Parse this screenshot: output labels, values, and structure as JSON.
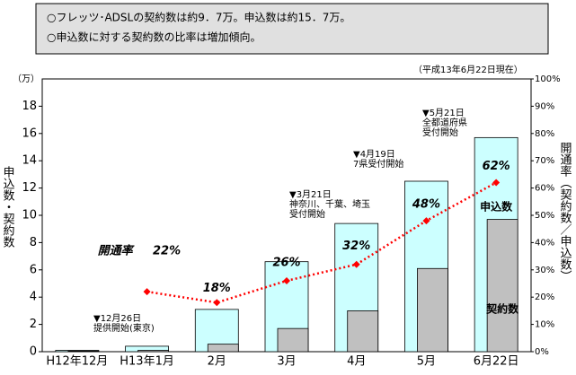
{
  "chart_data": {
    "type": "bar",
    "title_lines": [
      "○フレッツ･ADSLの契約数は約9．7万。申込数は約15．7万。",
      "○申込数に対する契約数の比率は増加傾向。"
    ],
    "as_of": "（平成13年6月22日現在）",
    "y_unit": "（万）",
    "ylabel": "申込数・契約数",
    "y2label": "開通率（契約数／申込数）",
    "categories": [
      "H12年12月",
      "H13年1月",
      "2月",
      "3月",
      "4月",
      "5月",
      "6月22日"
    ],
    "series": [
      {
        "name": "申込数",
        "color": "#ccffff",
        "values": [
          0.1,
          0.4,
          3.1,
          6.6,
          9.4,
          12.5,
          15.7
        ]
      },
      {
        "name": "契約数",
        "color": "#c0c0c0",
        "values": [
          0.05,
          0.1,
          0.55,
          1.7,
          3.0,
          6.1,
          9.7
        ]
      },
      {
        "name": "開通率",
        "type": "line",
        "axis": "y2",
        "color": "#ff0000",
        "values": [
          null,
          22,
          18,
          26,
          32,
          48,
          62
        ],
        "value_labels": [
          null,
          "22%",
          "18%",
          "26%",
          "32%",
          "48%",
          "62%"
        ]
      }
    ],
    "annotations": [
      {
        "lines": [
          "▼12月26日",
          "提供開始(東京)"
        ]
      },
      {
        "lines": [
          "▼3月21日",
          "神奈川、千葉、埼玉",
          "受付開始"
        ]
      },
      {
        "lines": [
          "▼4月19日",
          "7県受付開始"
        ]
      },
      {
        "lines": [
          "▼5月21日",
          "全都道府県",
          "受付開始"
        ]
      }
    ],
    "ylim": [
      0,
      20
    ],
    "yticks": [
      0,
      2,
      4,
      6,
      8,
      10,
      12,
      14,
      16,
      18
    ],
    "y2lim": [
      0,
      100
    ],
    "y2ticks": [
      {
        "value": 0,
        "label": "0%"
      },
      {
        "value": 10,
        "label": "10%"
      },
      {
        "value": 20,
        "label": "20%"
      },
      {
        "value": 30,
        "label": "30%"
      },
      {
        "value": 40,
        "label": "40%"
      },
      {
        "value": 50,
        "label": "50%"
      },
      {
        "value": 60,
        "label": "60%"
      },
      {
        "value": 70,
        "label": "70%"
      },
      {
        "value": 80,
        "label": "80%"
      },
      {
        "value": 90,
        "label": "90%"
      },
      {
        "value": 100,
        "label": "100%"
      }
    ]
  }
}
